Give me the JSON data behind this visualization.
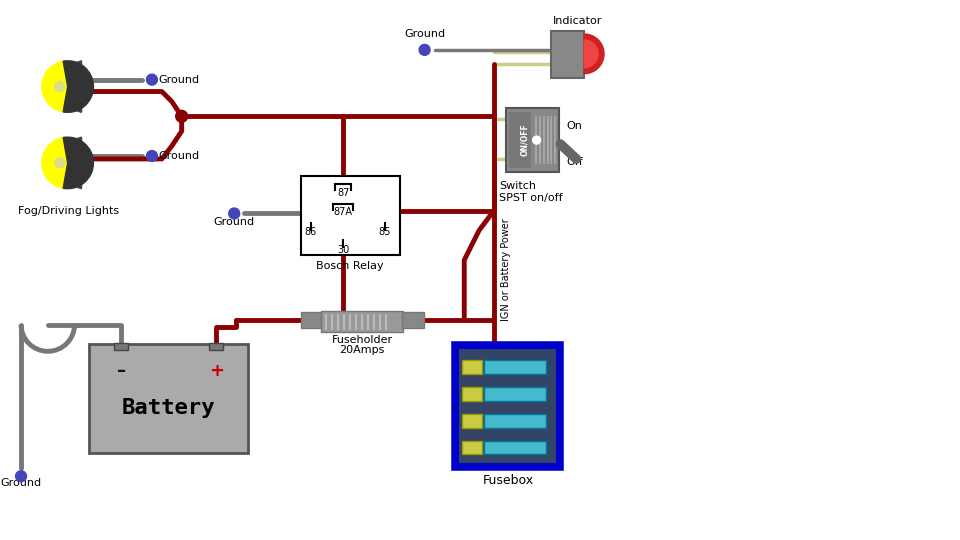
{
  "bg_color": "#ffffff",
  "wire_color": "#8b0000",
  "ground_wire_color": "#777777",
  "ground_dot_color": "#4444bb",
  "battery_color": "#aaaaaa",
  "fusebox_border": "#0000cc",
  "fusebox_inner": "#335577",
  "switch_color": "#888888",
  "indicator_color": "#cc2222",
  "light_yellow": "#ffff00",
  "light_bg": "#444444",
  "relay_label": "Bosch Relay",
  "fuse_label_1": "Fuseholder",
  "fuse_label_2": "20Amps",
  "fusebox_label": "Fusebox",
  "battery_label": "Battery",
  "fog_label": "Fog/Driving Lights",
  "switch_label_1": "Switch",
  "switch_label_2": "SPST on/off",
  "indicator_label": "Indicator",
  "ground_label": "Ground",
  "ign_label": "IGN or Battery Power"
}
